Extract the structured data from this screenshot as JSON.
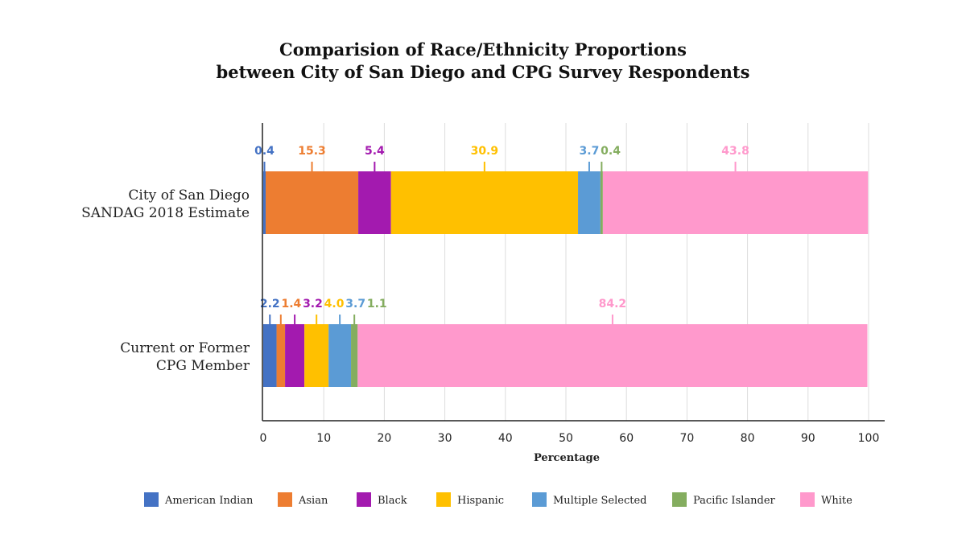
{
  "chart_data": {
    "type": "bar",
    "orientation": "horizontal",
    "stacked": true,
    "title": [
      "Comparision of Race/Ethnicity Proportions",
      "between City of San Diego and CPG Survey Respondents"
    ],
    "xlabel": "Percentage",
    "ylabel": "",
    "xlim": [
      0,
      100
    ],
    "xticks": [
      0,
      10,
      20,
      30,
      40,
      50,
      60,
      70,
      80,
      90,
      100
    ],
    "grid": true,
    "legend_position": "bottom",
    "categories": [
      [
        "City of San Diego",
        "SANDAG 2018 Estimate"
      ],
      [
        "Current or Former",
        "CPG Member"
      ]
    ],
    "series": [
      {
        "name": "American Indian",
        "color": "#4472c4",
        "values": [
          0.4,
          2.2
        ]
      },
      {
        "name": "Asian",
        "color": "#ed7d31",
        "values": [
          15.3,
          1.4
        ]
      },
      {
        "name": "Black",
        "color": "#a31aaf",
        "values": [
          5.4,
          3.2
        ]
      },
      {
        "name": "Hispanic",
        "color": "#ffc000",
        "values": [
          30.9,
          4.0
        ]
      },
      {
        "name": "Multiple Selected",
        "color": "#5b9bd5",
        "values": [
          3.7,
          3.7
        ]
      },
      {
        "name": "Pacific Islander",
        "color": "#84ad5f",
        "values": [
          0.4,
          1.1
        ]
      },
      {
        "name": "White",
        "color": "#ff99cc",
        "values": [
          43.8,
          84.2
        ]
      }
    ],
    "data_labels": [
      [
        "0.4",
        "15.3",
        "5.4",
        "30.9",
        "3.7",
        "0.4",
        "43.8"
      ],
      [
        "2.2",
        "1.4",
        "3.2",
        "4.0",
        "3.7",
        "1.1",
        "84.2"
      ]
    ]
  }
}
